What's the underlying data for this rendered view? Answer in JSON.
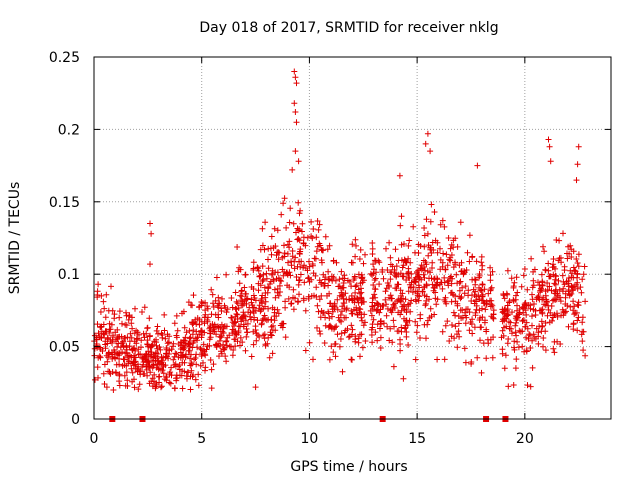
{
  "chart_data": {
    "type": "scatter",
    "title": "Day 018 of 2017, SRMTID for receiver nklg",
    "xlabel": "GPS time / hours",
    "ylabel": "SRMTID / TECUs",
    "xlim": [
      0,
      24
    ],
    "ylim": [
      0,
      0.25
    ],
    "x_ticks": [
      0,
      5,
      10,
      15,
      20
    ],
    "x_tick_labels": [
      "0",
      "5",
      "10",
      "15",
      "20"
    ],
    "y_ticks": [
      0,
      0.05,
      0.1,
      0.15,
      0.2,
      0.25
    ],
    "y_tick_labels": [
      "0",
      "0.05",
      "0.1",
      "0.15",
      "0.2",
      "0.25"
    ],
    "grid": true,
    "marker": "plus",
    "color": "#e00000",
    "profile": [
      {
        "x": 0.0,
        "y": 0.06,
        "spread": 0.02
      },
      {
        "x": 0.5,
        "y": 0.055,
        "spread": 0.02
      },
      {
        "x": 1.0,
        "y": 0.05,
        "spread": 0.018
      },
      {
        "x": 1.5,
        "y": 0.05,
        "spread": 0.018
      },
      {
        "x": 2.0,
        "y": 0.045,
        "spread": 0.015
      },
      {
        "x": 3.0,
        "y": 0.042,
        "spread": 0.014
      },
      {
        "x": 4.0,
        "y": 0.045,
        "spread": 0.014
      },
      {
        "x": 5.0,
        "y": 0.055,
        "spread": 0.018
      },
      {
        "x": 6.0,
        "y": 0.062,
        "spread": 0.02
      },
      {
        "x": 7.0,
        "y": 0.072,
        "spread": 0.022
      },
      {
        "x": 8.0,
        "y": 0.085,
        "spread": 0.024
      },
      {
        "x": 9.0,
        "y": 0.105,
        "spread": 0.028
      },
      {
        "x": 9.5,
        "y": 0.115,
        "spread": 0.03
      },
      {
        "x": 10.0,
        "y": 0.105,
        "spread": 0.028
      },
      {
        "x": 11.0,
        "y": 0.085,
        "spread": 0.022
      },
      {
        "x": 12.0,
        "y": 0.078,
        "spread": 0.022
      },
      {
        "x": 13.0,
        "y": 0.082,
        "spread": 0.022
      },
      {
        "x": 14.0,
        "y": 0.085,
        "spread": 0.024
      },
      {
        "x": 15.0,
        "y": 0.09,
        "spread": 0.026
      },
      {
        "x": 16.0,
        "y": 0.095,
        "spread": 0.026
      },
      {
        "x": 17.0,
        "y": 0.085,
        "spread": 0.024
      },
      {
        "x": 18.0,
        "y": 0.08,
        "spread": 0.022
      },
      {
        "x": 19.0,
        "y": 0.072,
        "spread": 0.02
      },
      {
        "x": 20.0,
        "y": 0.065,
        "spread": 0.018
      },
      {
        "x": 21.0,
        "y": 0.082,
        "spread": 0.022
      },
      {
        "x": 22.0,
        "y": 0.09,
        "spread": 0.024
      },
      {
        "x": 22.8,
        "y": 0.08,
        "spread": 0.022
      }
    ],
    "gaps": [
      [
        12.6,
        12.85
      ],
      [
        18.6,
        18.9
      ]
    ],
    "outliers": [
      {
        "x": 9.3,
        "y": 0.24
      },
      {
        "x": 9.35,
        "y": 0.236
      },
      {
        "x": 9.4,
        "y": 0.232
      },
      {
        "x": 9.3,
        "y": 0.218
      },
      {
        "x": 9.35,
        "y": 0.212
      },
      {
        "x": 9.4,
        "y": 0.205
      },
      {
        "x": 9.35,
        "y": 0.185
      },
      {
        "x": 9.5,
        "y": 0.178
      },
      {
        "x": 9.2,
        "y": 0.172
      },
      {
        "x": 15.5,
        "y": 0.197
      },
      {
        "x": 15.4,
        "y": 0.19
      },
      {
        "x": 15.6,
        "y": 0.185
      },
      {
        "x": 21.1,
        "y": 0.193
      },
      {
        "x": 21.15,
        "y": 0.188
      },
      {
        "x": 21.2,
        "y": 0.178
      },
      {
        "x": 22.5,
        "y": 0.188
      },
      {
        "x": 22.45,
        "y": 0.176
      },
      {
        "x": 22.4,
        "y": 0.165
      },
      {
        "x": 17.8,
        "y": 0.175
      },
      {
        "x": 14.2,
        "y": 0.168
      },
      {
        "x": 2.6,
        "y": 0.135
      },
      {
        "x": 2.65,
        "y": 0.128
      },
      {
        "x": 2.6,
        "y": 0.107
      },
      {
        "x": 0.6,
        "y": 0.022
      },
      {
        "x": 0.9,
        "y": 0.02
      },
      {
        "x": 7.5,
        "y": 0.022
      }
    ],
    "axis_markers_hours": [
      0.85,
      2.25,
      13.4,
      18.2,
      19.1
    ]
  }
}
